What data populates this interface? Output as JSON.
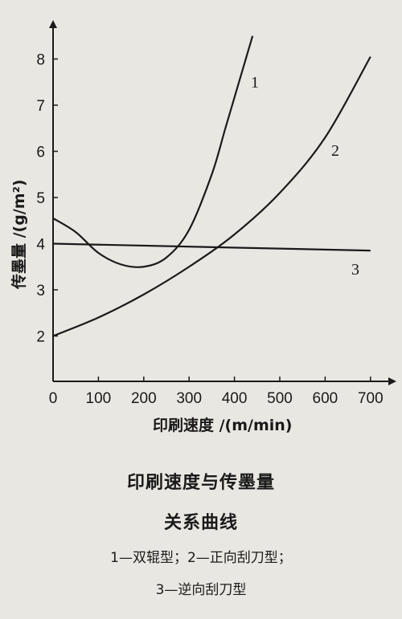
{
  "chart_data": {
    "type": "line",
    "xlabel": "印刷速度 /(m/min)",
    "ylabel": "传墨量 /(g/m²)",
    "xlim": [
      0,
      750
    ],
    "ylim": [
      1,
      8.7
    ],
    "x_ticks": [
      "0",
      "100",
      "200",
      "300",
      "400",
      "500",
      "600",
      "700"
    ],
    "y_ticks": [
      "2",
      "3",
      "4",
      "5",
      "6",
      "7",
      "8"
    ],
    "series": [
      {
        "name": "1",
        "x": [
          0,
          50,
          100,
          150,
          200,
          250,
          300,
          350,
          380,
          410,
          440
        ],
        "y": [
          4.55,
          4.25,
          3.8,
          3.55,
          3.5,
          3.7,
          4.3,
          5.5,
          6.5,
          7.5,
          8.5
        ]
      },
      {
        "name": "2",
        "x": [
          0,
          100,
          200,
          300,
          400,
          500,
          600,
          700
        ],
        "y": [
          2.0,
          2.4,
          2.9,
          3.5,
          4.2,
          5.1,
          6.3,
          8.05
        ]
      },
      {
        "name": "3",
        "x": [
          0,
          700
        ],
        "y": [
          4.0,
          3.85
        ]
      }
    ],
    "grid": false
  },
  "caption": {
    "title": "印刷速度与传墨量",
    "title2": "关系曲线",
    "legend_line1": "1—双辊型；2—正向刮刀型；",
    "legend_line2": "3—逆向刮刀型"
  }
}
